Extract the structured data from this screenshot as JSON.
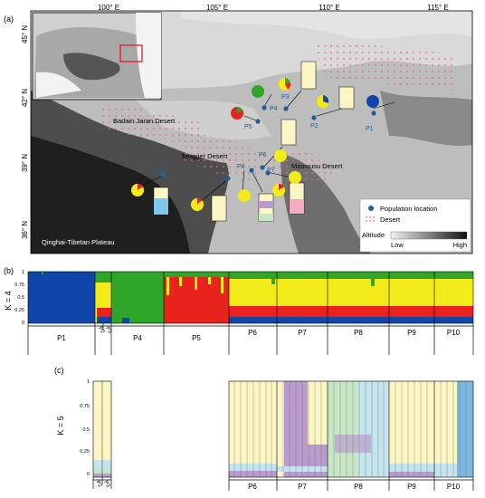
{
  "panel_labels": {
    "a": "(a)",
    "b": "(b)",
    "c": "(c)"
  },
  "map": {
    "lon_ticks": [
      "100° E",
      "105° E",
      "110° E",
      "115° E"
    ],
    "lat_ticks": [
      "45° N",
      "42° N",
      "39° N",
      "36° N"
    ],
    "region_labels": {
      "badain": "Badain Jaran Desert",
      "tengger": "Tengger Desert",
      "maowusu": "Maowusu Desert",
      "qinghai": "Qinghai-Tibetan Plateau"
    },
    "populations": [
      "P1",
      "P2",
      "P3",
      "P4",
      "P5",
      "P6",
      "P7",
      "P8",
      "P9",
      "P10"
    ],
    "legend": {
      "population_location": "Population location",
      "desert": "Desert",
      "altitude": "Altitude",
      "low": "Low",
      "high": "High"
    }
  },
  "k4": {
    "ylabel": "K = 4",
    "yticks": [
      "1",
      "0.75",
      "0.5",
      "0.25",
      "0"
    ],
    "groups": [
      "P1",
      "P2",
      "P3",
      "P4",
      "P5",
      "P6",
      "P7",
      "P8",
      "P9",
      "P10"
    ]
  },
  "k5": {
    "ylabel": "K = 5",
    "yticks": [
      "1",
      "0.75",
      "0.5",
      "0.25",
      "0"
    ],
    "groups_left": [
      "P2",
      "P3"
    ],
    "groups_right": [
      "P6",
      "P7",
      "P8",
      "P9",
      "P10"
    ]
  },
  "colors": {
    "blue": "#1046a8",
    "green": "#2fa52a",
    "yellow": "#f3ea1a",
    "red": "#e8221c",
    "cream": "#fbf6c4",
    "purple": "#b99ccd",
    "mint": "#c6e6c4",
    "lightblue": "#c4e4ee",
    "skyblue": "#7cb8e0"
  }
}
